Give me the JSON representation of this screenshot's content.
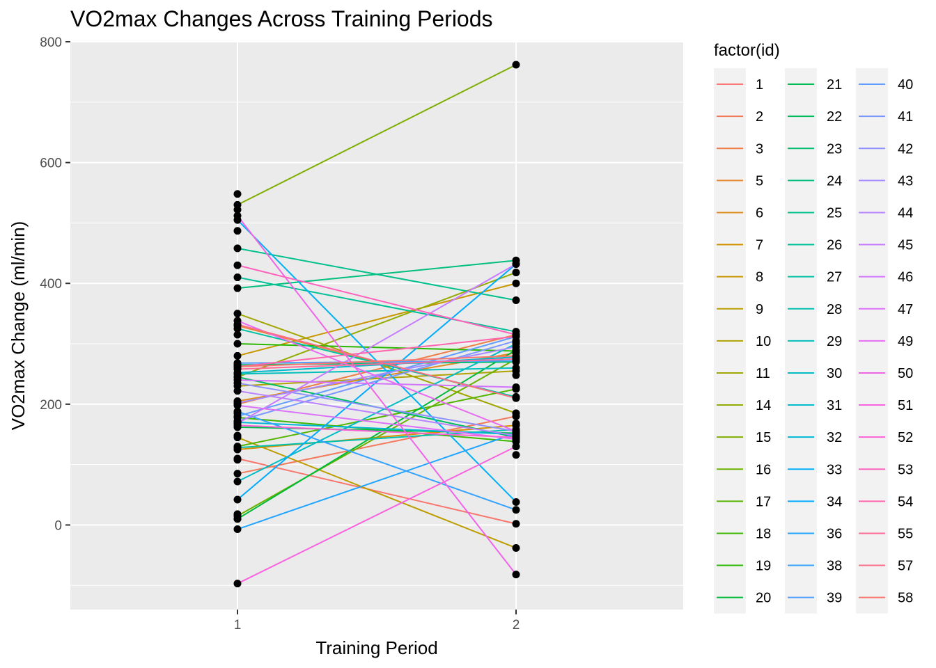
{
  "chart_data": {
    "type": "line",
    "title": "VO2max Changes Across Training Periods",
    "xlabel": "Training Period",
    "ylabel": "VO2max Change (ml/min)",
    "x": [
      1,
      2
    ],
    "x_ticks": [
      "1",
      "2"
    ],
    "y_ticks": [
      "0",
      "200",
      "400",
      "600",
      "800"
    ],
    "xlim": [
      0.4,
      2.6
    ],
    "ylim": [
      -140,
      800
    ],
    "grid": true,
    "legend_title": "factor(id)",
    "legend_position": "right",
    "point_color": "#000000",
    "panel_background": "#ebebeb",
    "series": [
      {
        "name": "1",
        "color": "#F8766D",
        "values": [
          110,
          2
        ]
      },
      {
        "name": "2",
        "color": "#F47A5C",
        "values": [
          85,
          180
        ]
      },
      {
        "name": "3",
        "color": "#EE7E46",
        "values": [
          200,
          315
        ]
      },
      {
        "name": "5",
        "color": "#E6862E",
        "values": [
          330,
          210
        ]
      },
      {
        "name": "6",
        "color": "#DD8D1F",
        "values": [
          205,
          285
        ]
      },
      {
        "name": "7",
        "color": "#D39200",
        "values": [
          125,
          165
        ]
      },
      {
        "name": "8",
        "color": "#C99800",
        "values": [
          280,
          400
        ]
      },
      {
        "name": "9",
        "color": "#BD9D00",
        "values": [
          145,
          -38
        ]
      },
      {
        "name": "10",
        "color": "#B0A200",
        "values": [
          230,
          255
        ]
      },
      {
        "name": "11",
        "color": "#A2A600",
        "values": [
          350,
          185
        ]
      },
      {
        "name": "14",
        "color": "#93AA00",
        "values": [
          245,
          418
        ]
      },
      {
        "name": "15",
        "color": "#7FAE00",
        "values": [
          530,
          762
        ]
      },
      {
        "name": "16",
        "color": "#6BB100",
        "values": [
          15,
          275
        ]
      },
      {
        "name": "17",
        "color": "#55B400",
        "values": [
          130,
          225
        ]
      },
      {
        "name": "18",
        "color": "#3FB600",
        "values": [
          178,
          138
        ]
      },
      {
        "name": "19",
        "color": "#2AB800",
        "values": [
          300,
          288
        ]
      },
      {
        "name": "20",
        "color": "#00BA38",
        "values": [
          10,
          290
        ]
      },
      {
        "name": "21",
        "color": "#00BB4E",
        "values": [
          162,
          152
        ]
      },
      {
        "name": "22",
        "color": "#00BC5E",
        "values": [
          245,
          145
        ]
      },
      {
        "name": "23",
        "color": "#00BE6F",
        "values": [
          265,
          270
        ]
      },
      {
        "name": "24",
        "color": "#00BF7D",
        "values": [
          392,
          438
        ]
      },
      {
        "name": "25",
        "color": "#00C08B",
        "values": [
          458,
          372
        ]
      },
      {
        "name": "26",
        "color": "#00C097",
        "values": [
          410,
          320
        ]
      },
      {
        "name": "27",
        "color": "#00C1A3",
        "values": [
          325,
          212
        ]
      },
      {
        "name": "28",
        "color": "#00C0AF",
        "values": [
          128,
          158
        ]
      },
      {
        "name": "29",
        "color": "#00BFBA",
        "values": [
          250,
          260
        ]
      },
      {
        "name": "30",
        "color": "#00BDC4",
        "values": [
          72,
          300
        ]
      },
      {
        "name": "31",
        "color": "#00BACE",
        "values": [
          252,
          278
        ]
      },
      {
        "name": "32",
        "color": "#00B6D7",
        "values": [
          170,
          150
        ]
      },
      {
        "name": "33",
        "color": "#00B0F6",
        "values": [
          505,
          38
        ]
      },
      {
        "name": "34",
        "color": "#00ABFD",
        "values": [
          42,
          432
        ]
      },
      {
        "name": "36",
        "color": "#1FA5FF",
        "values": [
          -7,
          152
        ]
      },
      {
        "name": "38",
        "color": "#35A2FF",
        "values": [
          188,
          25
        ]
      },
      {
        "name": "39",
        "color": "#529EFF",
        "values": [
          268,
          272
        ]
      },
      {
        "name": "40",
        "color": "#619CFF",
        "values": [
          180,
          312
        ]
      },
      {
        "name": "41",
        "color": "#7997FF",
        "values": [
          172,
          305
        ]
      },
      {
        "name": "42",
        "color": "#8F91FF",
        "values": [
          235,
          155
        ]
      },
      {
        "name": "43",
        "color": "#A58AFF",
        "values": [
          202,
          295
        ]
      },
      {
        "name": "44",
        "color": "#B983FF",
        "values": [
          222,
          148
        ]
      },
      {
        "name": "45",
        "color": "#C77CFF",
        "values": [
          168,
          432
        ]
      },
      {
        "name": "46",
        "color": "#D274FC",
        "values": [
          240,
          228
        ]
      },
      {
        "name": "47",
        "color": "#DC71FA",
        "values": [
          198,
          142
        ]
      },
      {
        "name": "49",
        "color": "#E76BF3",
        "values": [
          338,
          155
        ]
      },
      {
        "name": "50",
        "color": "#F064E8",
        "values": [
          512,
          -82
        ]
      },
      {
        "name": "51",
        "color": "#F863DF",
        "values": [
          -97,
          130
        ]
      },
      {
        "name": "52",
        "color": "#FC61D5",
        "values": [
          165,
          145
        ]
      },
      {
        "name": "53",
        "color": "#FF62BC",
        "values": [
          430,
          315
        ]
      },
      {
        "name": "54",
        "color": "#FF65AE",
        "values": [
          262,
          312
        ]
      },
      {
        "name": "55",
        "color": "#FF6A98",
        "values": [
          258,
          275
        ]
      },
      {
        "name": "57",
        "color": "#FC6E88",
        "values": [
          332,
          210
        ]
      },
      {
        "name": "58",
        "color": "#F8766D",
        "values": [
          262,
          280
        ]
      }
    ],
    "extra_points": [
      {
        "x": 1,
        "y": 548
      },
      {
        "x": 1,
        "y": 522
      },
      {
        "x": 1,
        "y": 487
      },
      {
        "x": 1,
        "y": 315
      },
      {
        "x": 1,
        "y": 185
      },
      {
        "x": 1,
        "y": 148
      },
      {
        "x": 1,
        "y": 108
      },
      {
        "x": 1,
        "y": 18
      },
      {
        "x": 1,
        "y": 10
      },
      {
        "x": 2,
        "y": 302
      },
      {
        "x": 2,
        "y": 248
      },
      {
        "x": 2,
        "y": 168
      },
      {
        "x": 2,
        "y": 116
      }
    ]
  }
}
